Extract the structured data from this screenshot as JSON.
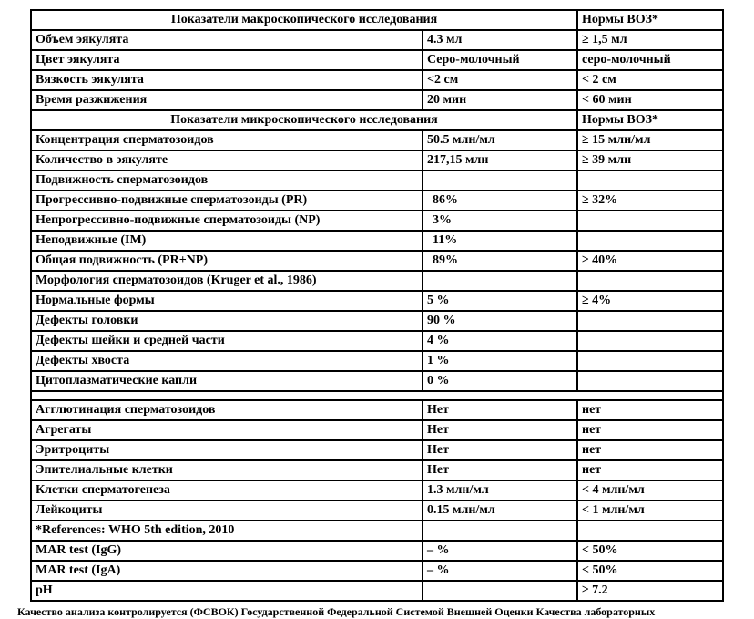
{
  "macroHeader": {
    "title": "Показатели макроскопического исследования",
    "norm": "Нормы ВОЗ*"
  },
  "macro": [
    {
      "label": "Объем эякулята",
      "value": "4.3 мл",
      "norm": "≥ 1,5 мл"
    },
    {
      "label": "Цвет эякулята",
      "value": "Серо-молочный",
      "norm": "серо-молочный"
    },
    {
      "label": "Вязкость эякулята",
      "value": "<2 см",
      "norm": "< 2 см"
    },
    {
      "label": "Время разжижения",
      "value": "20 мин",
      "norm": "< 60 мин"
    }
  ],
  "microHeader": {
    "title": "Показатели микроскопического исследования",
    "norm": "Нормы ВОЗ*"
  },
  "micro": [
    {
      "label": "Концентрация сперматозоидов",
      "value": "50.5 млн/мл",
      "norm": "≥ 15 млн/мл"
    },
    {
      "label": "Количество в эякуляте",
      "value": "217,15 млн",
      "norm": "≥ 39 млн"
    }
  ],
  "motilityHeader": "Подвижность сперматозоидов",
  "motility": [
    {
      "label": "Прогрессивно-подвижные сперматозоиды (PR)",
      "value": "86%",
      "norm": "≥ 32%",
      "indent": true
    },
    {
      "label": "Непрогрессивно-подвижные сперматозоиды (NP)",
      "value": "3%",
      "norm": "",
      "indent": true
    },
    {
      "label": "Неподвижные (IM)",
      "value": "11%",
      "norm": "",
      "indent": true
    },
    {
      "label": "Общая подвижность (PR+NP)",
      "value": "89%",
      "norm": "≥ 40%",
      "indent": true
    }
  ],
  "morphologyHeader": "Морфология сперматозоидов (Kruger et al., 1986)",
  "morphology": [
    {
      "label": "Нормальные формы",
      "value": "5 %",
      "norm": "≥ 4%"
    },
    {
      "label": "Дефекты  головки",
      "value": "90 %",
      "norm": ""
    },
    {
      "label": "Дефекты шейки и средней части",
      "value": "4 %",
      "norm": ""
    },
    {
      "label": "Дефекты  хвоста",
      "value": "1 %",
      "norm": ""
    },
    {
      "label": "Цитоплазматические капли",
      "value": "0 %",
      "norm": ""
    }
  ],
  "other": [
    {
      "label": "Агглютинация сперматозоидов",
      "value": "Нет",
      "norm": "нет"
    },
    {
      "label": "Агрегаты",
      "value": "Нет",
      "norm": "нет"
    },
    {
      "label": "Эритроциты",
      "value": "Нет",
      "norm": "нет"
    },
    {
      "label": "Эпителиальные клетки",
      "value": "Нет",
      "norm": "нет"
    },
    {
      "label": "Клетки сперматогенеза",
      "value": "1.3 млн/мл",
      "norm": "< 4 млн/мл"
    },
    {
      "label": "Лейкоциты",
      "value": "0.15 млн/мл",
      "norm": "< 1 млн/мл"
    }
  ],
  "referencesLine": "*References: WHO 5th edition, 2010",
  "extra": [
    {
      "label": "MAR test (IgG)",
      "value": "– %",
      "norm": "< 50%"
    },
    {
      "label": "MAR test (IgA)",
      "value": "– %",
      "norm": "< 50%"
    },
    {
      "label": "pH",
      "value": "",
      "norm": "≥ 7.2"
    }
  ],
  "footer": "Качество анализа контролируется (ФСВОК) Государственной Федеральной Системой Внешней Оценки Качества  лабораторных"
}
